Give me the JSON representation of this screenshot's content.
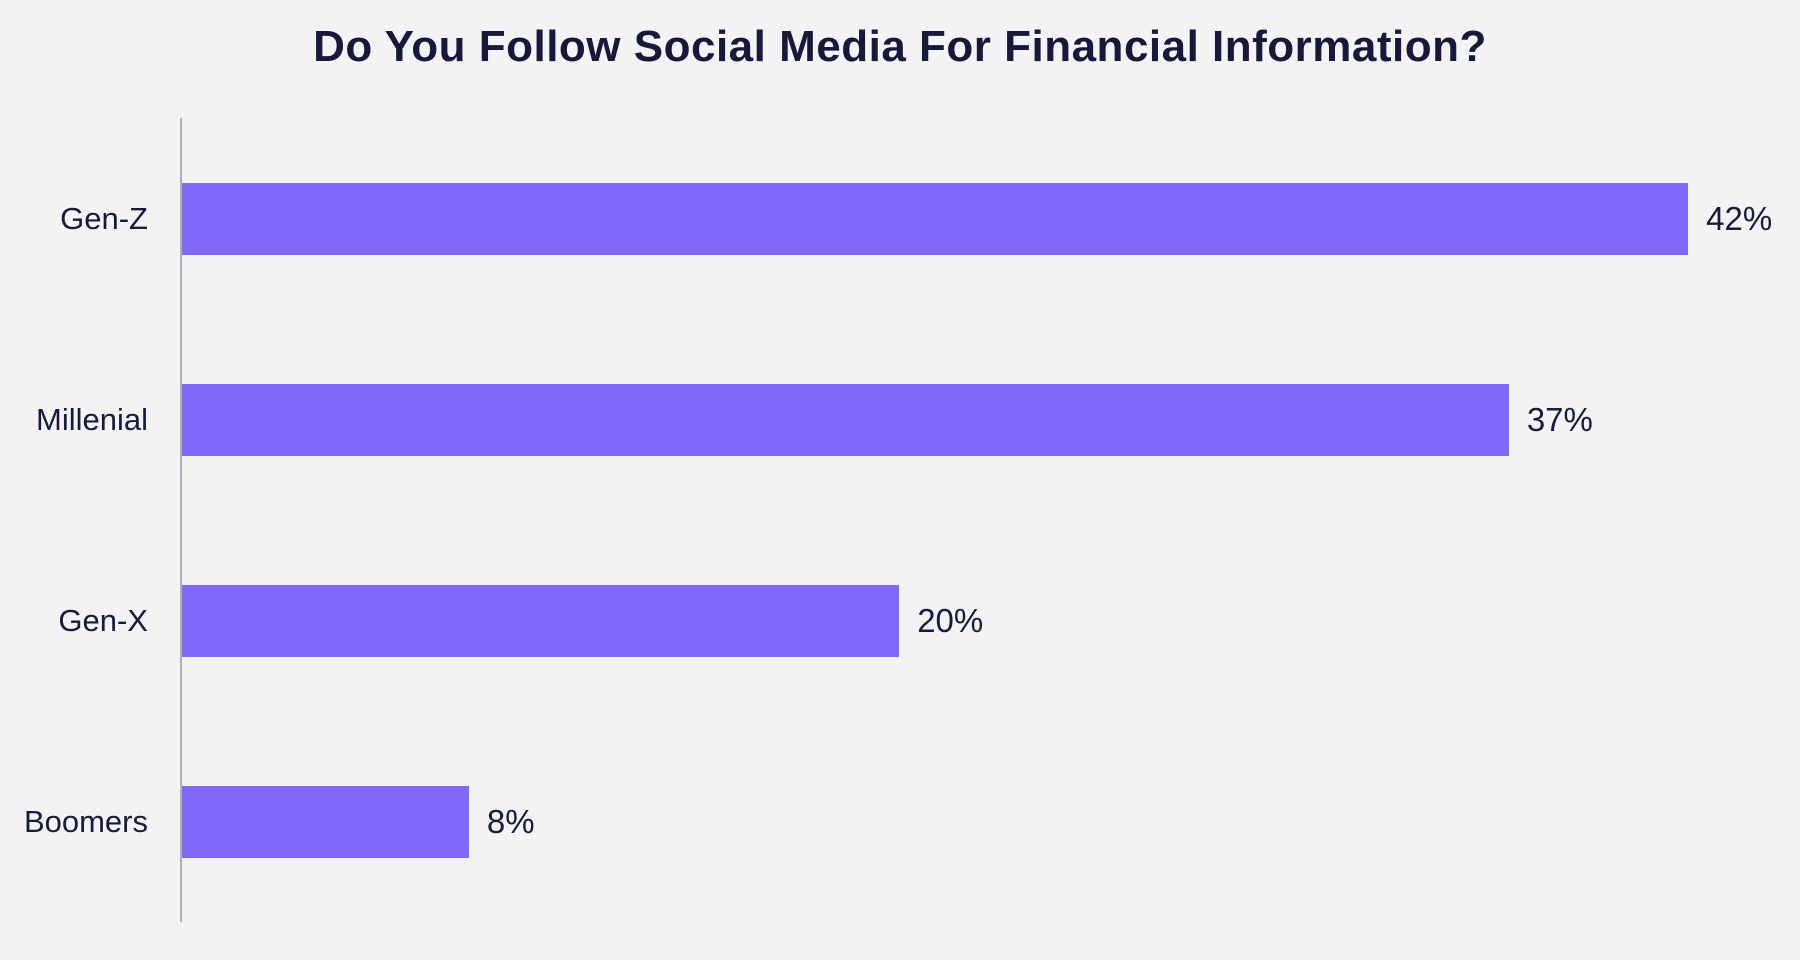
{
  "chart_data": {
    "type": "bar",
    "orientation": "horizontal",
    "title": "Do You Follow Social Media For Financial Information?",
    "categories": [
      "Gen-Z",
      "Millenial",
      "Gen-X",
      "Boomers"
    ],
    "values": [
      42,
      37,
      20,
      8
    ],
    "value_labels": [
      "42%",
      "37%",
      "20%",
      "8%"
    ],
    "xlabel": "",
    "ylabel": "",
    "xlim": [
      0,
      45
    ],
    "grid": false,
    "legend": false,
    "colors": {
      "bar": "#8268fa",
      "background": "#f2f3f5",
      "text": "#1b1a38",
      "title_text": "#191838",
      "axis_line": "#b1b1b9"
    }
  }
}
